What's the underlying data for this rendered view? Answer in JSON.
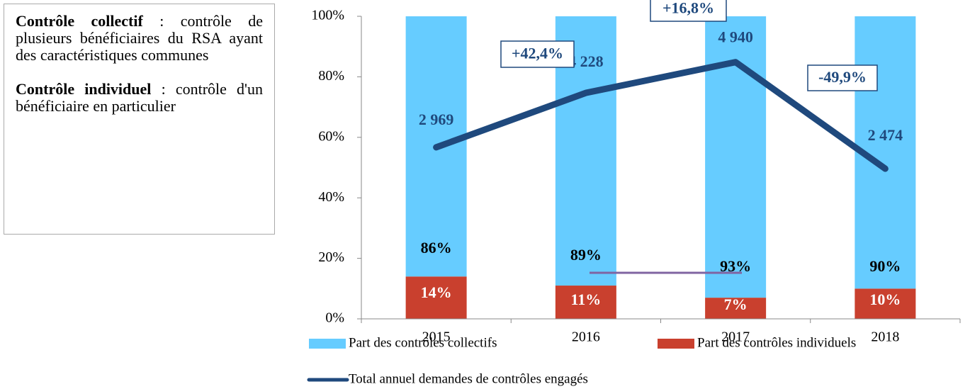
{
  "box": {
    "items": [
      {
        "term": "Contrôle collectif",
        "definition": ": contrôle de plusieurs bénéficiaires du RSA ayant des caractéristiques communes"
      },
      {
        "term": "Contrôle individuel",
        "definition": ": contrôle d'un bénéficiaire en particulier"
      }
    ]
  },
  "chart_data": {
    "type": "bar",
    "stacked": true,
    "categories": [
      "2015",
      "2016",
      "2017",
      "2018"
    ],
    "ylim": [
      0,
      100
    ],
    "yticks": [
      {
        "value": 0,
        "label": "0%"
      },
      {
        "value": 20,
        "label": "20%"
      },
      {
        "value": 40,
        "label": "40%"
      },
      {
        "value": 60,
        "label": "60%"
      },
      {
        "value": 80,
        "label": "80%"
      },
      {
        "value": 100,
        "label": "100%"
      }
    ],
    "y2lim": [
      -1000,
      6000
    ],
    "series": [
      {
        "name": "Part des contrôles individuels",
        "color": "#c9402e",
        "values": [
          14,
          11,
          7,
          10
        ],
        "value_labels": [
          "14%",
          "11%",
          "7%",
          "10%"
        ]
      },
      {
        "name": "Part des contrôles collectifs",
        "color": "#66ccff",
        "values": [
          86,
          89,
          93,
          90
        ],
        "value_labels": [
          "86%",
          "89%",
          "93%",
          "90%"
        ]
      },
      {
        "name": "Total annuel demandes de contrôles engagés",
        "type": "line",
        "axis": "y2",
        "color": "#1f497d",
        "values": [
          2969,
          4228,
          4940,
          2474
        ],
        "value_labels": [
          "2 969",
          "4 228",
          "4 940",
          "2 474"
        ]
      }
    ],
    "annotations": [
      "+42,4%",
      "+16,8%",
      "-49,9%"
    ]
  }
}
